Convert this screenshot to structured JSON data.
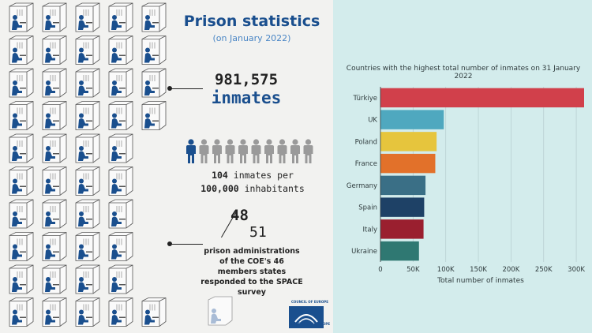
{
  "infographic": {
    "title": "Prison statistics",
    "subtitle": "(on January 2022)",
    "total_inmates_value": "981,575",
    "total_inmates_unit": "inmates",
    "rate_line1_value": "104",
    "rate_line1_text": " inmates per",
    "rate_line2_value": "100,000",
    "rate_line2_text": " inhabitants",
    "responded_count": "48",
    "total_administrations": "51",
    "survey_text": "prison administrations of the COE's 46 members states responded to the SPACE survey",
    "logo_top": "COUNCIL OF EUROPE",
    "logo_bottom": "CONSEIL DE L'EUROPE",
    "people_highlighted": 1,
    "people_total": 10,
    "colors": {
      "brand_blue": "#1a4f8e",
      "figure_gray": "#9a9a9a"
    }
  },
  "chart_data": {
    "type": "bar",
    "orientation": "horizontal",
    "title": "Countries with the highest total number of inmates on 31 January 2022",
    "xlabel": "Total number of inmates",
    "ylabel": "",
    "categories": [
      "Türkiye",
      "UK",
      "Poland",
      "France",
      "Germany",
      "Spain",
      "Italy",
      "Ukraine"
    ],
    "values": [
      312000,
      97000,
      86000,
      84000,
      69000,
      67000,
      66000,
      59000
    ],
    "colors": [
      "#d1404b",
      "#4fa8bf",
      "#e6c53d",
      "#e2712a",
      "#3a6f86",
      "#1e4166",
      "#9a1f2f",
      "#2f7872"
    ],
    "xlim": [
      0,
      312000
    ],
    "xticks": [
      0,
      50000,
      100000,
      150000,
      200000,
      250000,
      300000
    ],
    "xtick_labels": [
      "0",
      "50K",
      "100K",
      "150K",
      "200K",
      "250K",
      "300K"
    ],
    "grid": true
  }
}
